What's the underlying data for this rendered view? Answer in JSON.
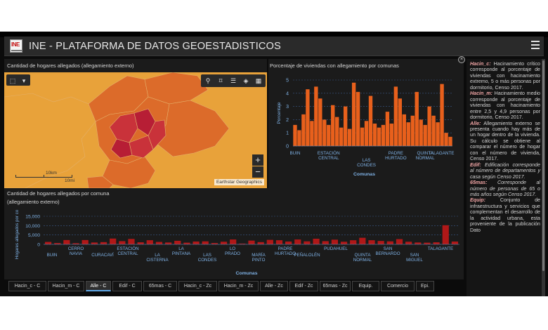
{
  "header": {
    "logo_text": "INE",
    "title": "INE - PLATAFORMA DE DATOS GEOESTADISTICOS"
  },
  "map": {
    "title": "Cantidad de hogares allegados (allegamiento externo)",
    "scale_km": "10km",
    "scale_mi": "10mi",
    "attribution": "Earthstar Geographics",
    "zoom_in": "+",
    "zoom_out": "−",
    "colors": {
      "low": "#e8a23a",
      "mid": "#dc6b2a",
      "high": "#c9323a",
      "top": "#b71e35"
    }
  },
  "right_chart": {
    "title": "Porcentaje de viviendas con allegamiento por comunas",
    "ylabel": "Porcentaje",
    "xlabel": "Comunas",
    "bar_color": "#e8601c"
  },
  "bottom_chart": {
    "title_line1": "Cantidad de hogares allegados por comuna",
    "title_line2": "(allegamiento externo)",
    "ylabel": "Hogares allegados por co",
    "xlabel": "Comunas",
    "bar_color": "#b01818"
  },
  "chart_data": [
    {
      "type": "bar",
      "title": "Porcentaje de viviendas con allegamiento por comunas",
      "xlabel": "Comunas",
      "ylabel": "Porcentaje",
      "ylim": [
        0,
        5
      ],
      "yticks": [
        0,
        1,
        2,
        3,
        4,
        5
      ],
      "tick_labels": [
        "BUIN",
        "ESTACIÓN CENTRAL",
        "LAS CONDES",
        "PADRE HURTADO",
        "QUINTA NORMAL",
        "TALAGANTE"
      ],
      "values": [
        1.6,
        1.2,
        2.4,
        4.3,
        1.9,
        4.5,
        3.6,
        2.0,
        1.6,
        3.1,
        2.2,
        1.4,
        3.0,
        1.3,
        4.8,
        4.1,
        1.4,
        1.9,
        3.8,
        1.7,
        1.4,
        1.6,
        2.6,
        1.7,
        4.5,
        3.6,
        2.4,
        1.8,
        2.3,
        4.1,
        2.0,
        1.6,
        3.0,
        2.3,
        1.8,
        4.7,
        1.0,
        0.7
      ]
    },
    {
      "type": "bar",
      "title": "Cantidad de hogares allegados por comuna (allegamiento externo)",
      "xlabel": "Comunas",
      "ylabel": "Hogares allegados por co",
      "ylim": [
        0,
        15000
      ],
      "yticks": [
        0,
        5000,
        10000,
        15000
      ],
      "ytick_labels": [
        "0",
        "5,000",
        "10,000",
        "15,000"
      ],
      "tick_labels": [
        "BUIN",
        "CERRO NAVIA",
        "CURACAVÍ",
        "ESTACIÓN CENTRAL",
        "LA CISTERNA",
        "LA PINTANA",
        "LAS CONDES",
        "LO PRADO",
        "MARÍA PINTO",
        "PADRE HURTADO",
        "PEÑALOLÉN",
        "PUDAHUEL",
        "QUINTA NORMAL",
        "SAN BERNARDO",
        "SAN MIGUEL",
        "TALAGANTE"
      ],
      "values": [
        1300,
        700,
        2300,
        600,
        2300,
        1000,
        1200,
        3100,
        1700,
        2900,
        1100,
        2200,
        1300,
        1000,
        1900,
        900,
        1500,
        1600,
        700,
        1400,
        2600,
        400,
        2000,
        1200,
        2400,
        2200,
        1500,
        2600,
        1600,
        3000,
        1700,
        2500,
        1400,
        2200,
        3500,
        2200,
        1800,
        1600,
        2800,
        1400,
        1000,
        900,
        1100,
        10200,
        1500
      ]
    }
  ],
  "side_panel": {
    "items": [
      {
        "term": "Hacin_c:",
        "text": " Hacinamiento crítico corresponde al porcentaje de viviendas con hacinamiento extremo, 5 o más personas por dormitorio, Censo 2017."
      },
      {
        "term": "Hacin_m:",
        "text": " Hacinamiento medio corresponde al porcentaje de viviendas con hacinamiento entre 2,5 y 4,9 personas por dormitorio, Censo 2017."
      },
      {
        "term": "Alle:",
        "text": " Allegamiento externo se presenta cuando hay más de un hogar dentro de la vivienda. Su cálculo se obtiene al comparar el número de hogar con el número de vivienda, Censo 2017."
      },
      {
        "term": "Edif:",
        "text": " Edificación corresponde al número de departamentos y casa según Censo 2017."
      },
      {
        "term": "65mas:",
        "text": " Corresponde al número de personas de 65 o más años según Censo 2017."
      },
      {
        "term": "Equip:",
        "text": " Conjunto de infraestructura y servicios que complementan el desarrollo de la actividad urbana, esta proveniente de la publicación Dato"
      }
    ]
  },
  "tabs": [
    {
      "label": "Hacin_c - C"
    },
    {
      "label": "Hacin_m - C"
    },
    {
      "label": "Alle - C",
      "active": true
    },
    {
      "label": "Edif - C"
    },
    {
      "label": "65mas - C"
    },
    {
      "label": "Hacin_c - Zc"
    },
    {
      "label": "Hacin_m - Zc"
    },
    {
      "label": "Alle - Zc"
    },
    {
      "label": "Edif - Zc"
    },
    {
      "label": "65mas - Zc"
    },
    {
      "label": "Equip."
    },
    {
      "label": "Comercio"
    },
    {
      "label": "Epi."
    }
  ]
}
